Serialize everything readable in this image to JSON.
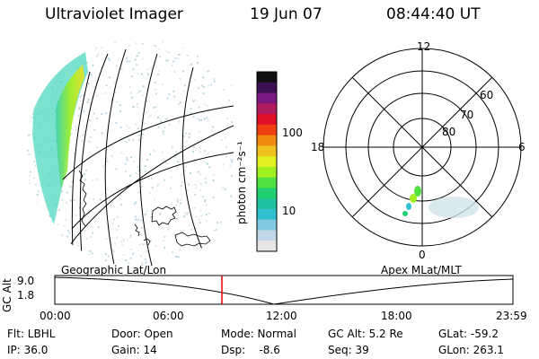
{
  "header": {
    "instrument": "Ultraviolet Imager",
    "date": "19 Jun 07",
    "time": "08:44:40 UT"
  },
  "colorbar": {
    "unit_label": "photon cm⁻²s⁻¹",
    "ticks": [
      "100",
      "10"
    ],
    "colors": [
      "#101010",
      "#3a1050",
      "#7a1a80",
      "#b01a60",
      "#e0102a",
      "#f04010",
      "#f08a10",
      "#f0c020",
      "#e0f020",
      "#a0f020",
      "#50e040",
      "#20d070",
      "#20c0a0",
      "#30c0d0",
      "#80c8e0",
      "#c0d8e8",
      "#e6e6e6"
    ]
  },
  "polar": {
    "mlt_labels": {
      "top": "12",
      "left": "18",
      "right": "6",
      "bottom": "0"
    },
    "lat_labels": [
      "60",
      "70",
      "80"
    ]
  },
  "panel_labels": {
    "geo": "Geographic Lat/Lon",
    "apex": "Apex MLat/MLT"
  },
  "timeline": {
    "axis_label": "GC Alt",
    "y_ticks": [
      "9.0",
      "1.8"
    ],
    "x_ticks": [
      "00:00",
      "06:00",
      "12:00",
      "18:00",
      "23:59"
    ],
    "marker_color": "#e00000"
  },
  "footer": {
    "flt": "Flt: LBHL",
    "ip": "IP: 36.0",
    "door": "Door: Open",
    "gain": "Gain: 14",
    "mode": "Mode: Normal",
    "dsp": "Dsp:    -8.6",
    "gcalt": "GC Alt: 5.2 Re",
    "seq": "Seq: 39",
    "glat": "GLat: -59.2",
    "glon": "GLon: 263.1"
  }
}
